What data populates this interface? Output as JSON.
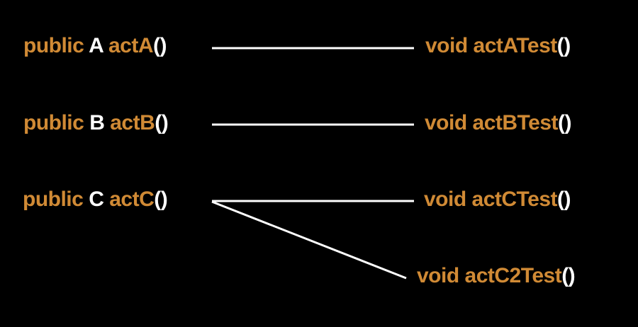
{
  "colors": {
    "background": "#000000",
    "keyword": "#d08a35",
    "type": "#ffffff",
    "line": "#ffffff"
  },
  "methods": [
    {
      "id": "a",
      "modifier": "public",
      "type": "A",
      "name": "actA",
      "parens": "()"
    },
    {
      "id": "b",
      "modifier": "public",
      "type": "B",
      "name": "actB",
      "parens": "()"
    },
    {
      "id": "c",
      "modifier": "public",
      "type": "C",
      "name": "actC",
      "parens": "()"
    }
  ],
  "tests": [
    {
      "id": "a",
      "return_type": "void",
      "name": "actATest",
      "parens": "()"
    },
    {
      "id": "b",
      "return_type": "void",
      "name": "actBTest",
      "parens": "()"
    },
    {
      "id": "c",
      "return_type": "void",
      "name": "actCTest",
      "parens": "()"
    },
    {
      "id": "c2",
      "return_type": "void",
      "name": "actC2Test",
      "parens": "()"
    }
  ],
  "links": [
    {
      "from": "a",
      "to": "a"
    },
    {
      "from": "b",
      "to": "b"
    },
    {
      "from": "c",
      "to": "c"
    },
    {
      "from": "c",
      "to": "c2"
    }
  ]
}
